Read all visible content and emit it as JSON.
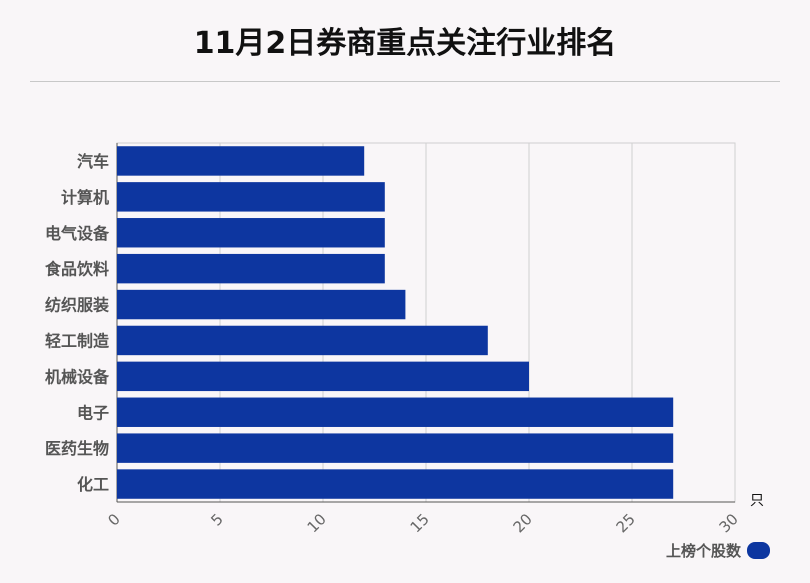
{
  "title": "11月2日券商重点关注行业排名",
  "chart_data": {
    "type": "bar",
    "orientation": "horizontal",
    "categories": [
      "汽车",
      "计算机",
      "电气设备",
      "食品饮料",
      "纺织服装",
      "轻工制造",
      "机械设备",
      "电子",
      "医药生物",
      "化工"
    ],
    "series": [
      {
        "name": "上榜个股数",
        "values": [
          12,
          13,
          13,
          13,
          14,
          18,
          20,
          27,
          27,
          27
        ]
      }
    ],
    "xlim": [
      0,
      30
    ],
    "xticks": [
      "0",
      "5",
      "10",
      "15",
      "20",
      "25",
      "30"
    ],
    "x_unit": "只",
    "grid": true,
    "legend_position": "bottom-right",
    "bar_color": "#0d36a0"
  }
}
